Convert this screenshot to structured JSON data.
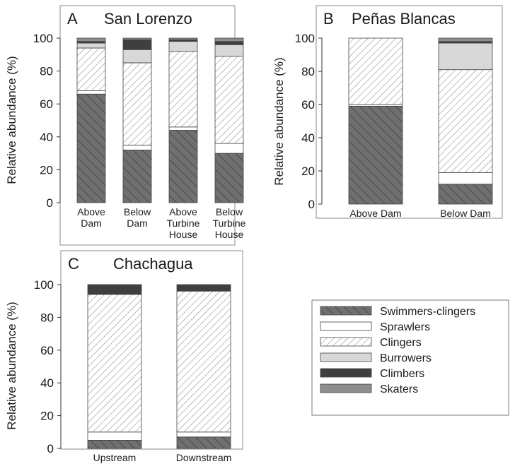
{
  "legend": {
    "items": [
      {
        "name": "Swimmers-clingers",
        "pattern": "swim"
      },
      {
        "name": "Sprawlers",
        "pattern": "sprawl"
      },
      {
        "name": "Clingers",
        "pattern": "cling"
      },
      {
        "name": "Burrowers",
        "pattern": "burrow"
      },
      {
        "name": "Climbers",
        "pattern": "climb"
      },
      {
        "name": "Skaters",
        "pattern": "skate"
      }
    ]
  },
  "colors": {
    "swimmers_fill": "#707070",
    "sprawlers_fill": "#ffffff",
    "clingers_hatch": "#8a8a8a",
    "burrowers_fill": "#d8d8d8",
    "climbers_fill": "#3f3f3f",
    "skaters_fill": "#8e8e8e"
  },
  "chart_data": [
    {
      "type": "bar",
      "stacked": true,
      "panel_label": "A",
      "title": "San Lorenzo",
      "ylabel": "Relative abundance (%)",
      "ylim": [
        0,
        100
      ],
      "yticks": [
        0,
        20,
        40,
        60,
        80,
        100
      ],
      "categories": [
        [
          "Above",
          "Dam"
        ],
        [
          "Below",
          "Dam"
        ],
        [
          "Above",
          "Turbine",
          "House"
        ],
        [
          "Below",
          "Turbine",
          "House"
        ]
      ],
      "series": [
        {
          "name": "Swimmers-clingers",
          "values": [
            66,
            32,
            44,
            30
          ]
        },
        {
          "name": "Sprawlers",
          "values": [
            2,
            3,
            2,
            6
          ]
        },
        {
          "name": "Clingers",
          "values": [
            26,
            50,
            46,
            53
          ]
        },
        {
          "name": "Burrowers",
          "values": [
            3,
            8,
            6,
            7
          ]
        },
        {
          "name": "Climbers",
          "values": [
            1,
            6,
            1,
            2
          ]
        },
        {
          "name": "Skaters",
          "values": [
            2,
            1,
            1,
            2
          ]
        }
      ]
    },
    {
      "type": "bar",
      "stacked": true,
      "panel_label": "B",
      "title": "Peñas Blancas",
      "ylabel": "Relative abundance (%)",
      "ylim": [
        0,
        100
      ],
      "yticks": [
        0,
        20,
        40,
        60,
        80,
        100
      ],
      "categories": [
        [
          "Above Dam"
        ],
        [
          "Below Dam"
        ]
      ],
      "series": [
        {
          "name": "Swimmers-clingers",
          "values": [
            59,
            12
          ]
        },
        {
          "name": "Sprawlers",
          "values": [
            1,
            7
          ]
        },
        {
          "name": "Clingers",
          "values": [
            40,
            62
          ]
        },
        {
          "name": "Burrowers",
          "values": [
            0,
            16
          ]
        },
        {
          "name": "Climbers",
          "values": [
            0,
            1
          ]
        },
        {
          "name": "Skaters",
          "values": [
            0,
            2
          ]
        }
      ]
    },
    {
      "type": "bar",
      "stacked": true,
      "panel_label": "C",
      "title": "Chachagua",
      "ylabel": "Relative abundance (%)",
      "ylim": [
        0,
        100
      ],
      "yticks": [
        0,
        20,
        40,
        60,
        80,
        100
      ],
      "categories": [
        [
          "Upstream"
        ],
        [
          "Downstream"
        ]
      ],
      "series": [
        {
          "name": "Swimmers-clingers",
          "values": [
            5,
            7
          ]
        },
        {
          "name": "Sprawlers",
          "values": [
            5,
            3
          ]
        },
        {
          "name": "Clingers",
          "values": [
            84,
            86
          ]
        },
        {
          "name": "Burrowers",
          "values": [
            0,
            0
          ]
        },
        {
          "name": "Climbers",
          "values": [
            6,
            4
          ]
        },
        {
          "name": "Skaters",
          "values": [
            0,
            0
          ]
        }
      ]
    }
  ]
}
